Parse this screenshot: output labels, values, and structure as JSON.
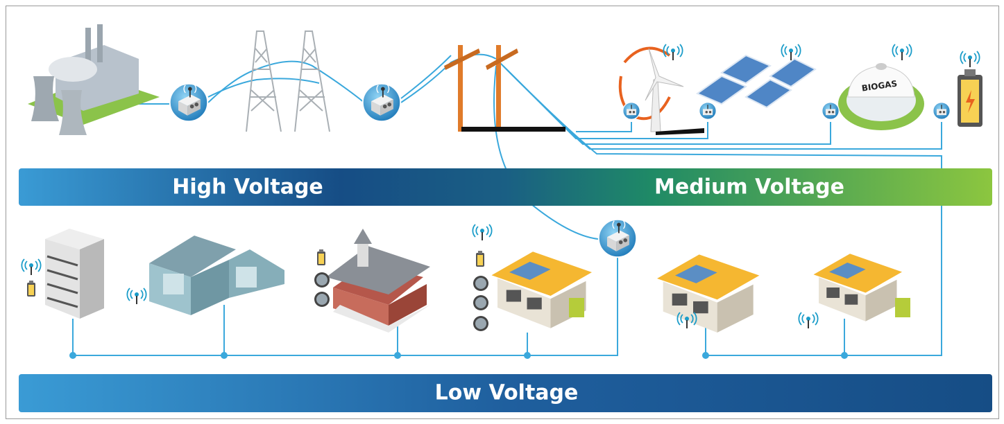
{
  "labels": {
    "high_voltage": "High Voltage",
    "medium_voltage": "Medium Voltage",
    "low_voltage": "Low Voltage",
    "biogas": "BIOGAS"
  }
}
